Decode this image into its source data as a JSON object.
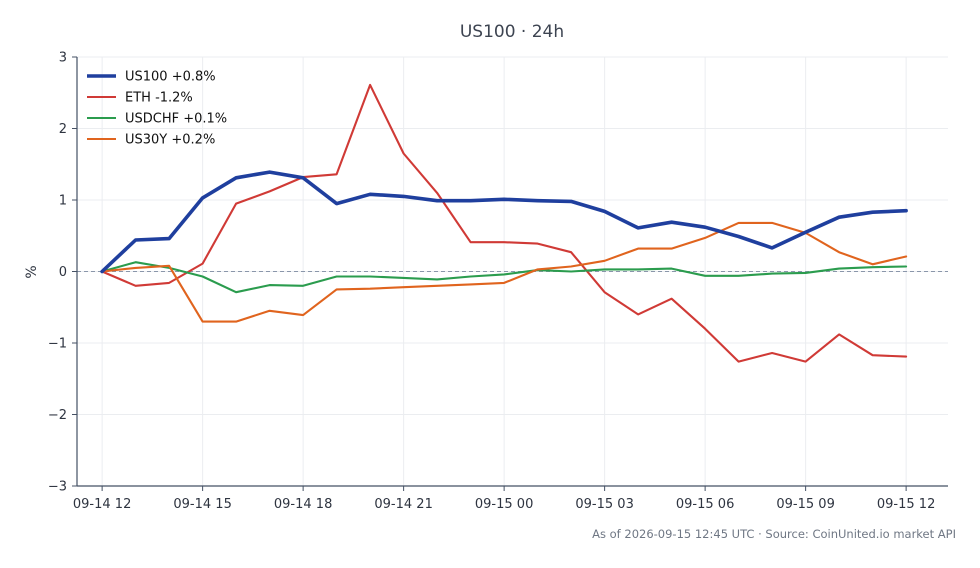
{
  "chart_data": {
    "type": "line",
    "title": "US100 · 24h",
    "xlabel": "",
    "ylabel": "%",
    "xlim": [
      "2026-09-14 11:15",
      "2026-09-15 13:15"
    ],
    "ylim": [
      -3,
      3
    ],
    "yticks": [
      -3,
      -2,
      -1,
      0,
      1,
      2,
      3
    ],
    "ytick_labels": [
      "−3",
      "−2",
      "−1",
      "0",
      "1",
      "2",
      "3"
    ],
    "xticks": [
      "2026-09-14 12:00",
      "2026-09-14 15:00",
      "2026-09-14 18:00",
      "2026-09-14 21:00",
      "2026-09-15 00:00",
      "2026-09-15 03:00",
      "2026-09-15 06:00",
      "2026-09-15 09:00",
      "2026-09-15 12:00"
    ],
    "xtick_labels": [
      "09-14 12",
      "09-14 15",
      "09-14 18",
      "09-14 21",
      "09-15 00",
      "09-15 03",
      "09-15 06",
      "09-15 09",
      "09-15 12"
    ],
    "x": [
      "2026-09-14 12:00",
      "2026-09-14 13:00",
      "2026-09-14 14:00",
      "2026-09-14 15:00",
      "2026-09-14 16:00",
      "2026-09-14 17:00",
      "2026-09-14 18:00",
      "2026-09-14 19:00",
      "2026-09-14 20:00",
      "2026-09-14 21:00",
      "2026-09-14 22:00",
      "2026-09-14 23:00",
      "2026-09-15 00:00",
      "2026-09-15 01:00",
      "2026-09-15 02:00",
      "2026-09-15 03:00",
      "2026-09-15 04:00",
      "2026-09-15 05:00",
      "2026-09-15 06:00",
      "2026-09-15 07:00",
      "2026-09-15 08:00",
      "2026-09-15 09:00",
      "2026-09-15 10:00",
      "2026-09-15 11:00",
      "2026-09-15 12:00"
    ],
    "reference_line": 0,
    "grid": true,
    "legend_position": "top-left",
    "series": [
      {
        "name": "US100 +0.8%",
        "color": "#1f3f9e",
        "values": [
          0,
          0.44,
          0.46,
          1.03,
          1.31,
          1.39,
          1.31,
          0.95,
          1.08,
          1.05,
          0.99,
          0.99,
          1.01,
          0.99,
          0.98,
          0.84,
          0.61,
          0.69,
          0.62,
          0.49,
          0.33,
          0.55,
          0.76,
          0.83,
          0.85
        ]
      },
      {
        "name": "ETH -1.2%",
        "color": "#d03a36",
        "values": [
          0,
          -0.2,
          -0.16,
          0.11,
          0.95,
          1.12,
          1.32,
          1.36,
          2.61,
          1.65,
          1.1,
          0.41,
          0.41,
          0.39,
          0.27,
          -0.29,
          -0.6,
          -0.38,
          -0.8,
          -1.26,
          -1.14,
          -1.26,
          -0.88,
          -1.17,
          -1.19
        ]
      },
      {
        "name": "USDCHF +0.1%",
        "color": "#2b9c4e",
        "values": [
          0,
          0.13,
          0.05,
          -0.07,
          -0.29,
          -0.19,
          -0.2,
          -0.07,
          -0.07,
          -0.09,
          -0.11,
          -0.07,
          -0.04,
          0.02,
          0.0,
          0.03,
          0.03,
          0.04,
          -0.06,
          -0.06,
          -0.03,
          -0.02,
          0.04,
          0.06,
          0.07
        ]
      },
      {
        "name": "US30Y +0.2%",
        "color": "#e0641e",
        "values": [
          0,
          0.05,
          0.08,
          -0.7,
          -0.7,
          -0.55,
          -0.61,
          -0.25,
          -0.24,
          -0.22,
          -0.2,
          -0.18,
          -0.16,
          0.03,
          0.07,
          0.15,
          0.32,
          0.32,
          0.47,
          0.68,
          0.68,
          0.54,
          0.27,
          0.1,
          0.21
        ]
      }
    ],
    "footnote": "As of 2026-09-15 12:45 UTC · Source: CoinUnited.io market API"
  },
  "colors": {
    "title": "#3d4451",
    "axis": "#445064",
    "tick_label": "#2e3440",
    "grid": "#ebedf0",
    "zero_line": "#8a96aa",
    "footnote": "#6f7784",
    "legend_text": "#111111"
  }
}
